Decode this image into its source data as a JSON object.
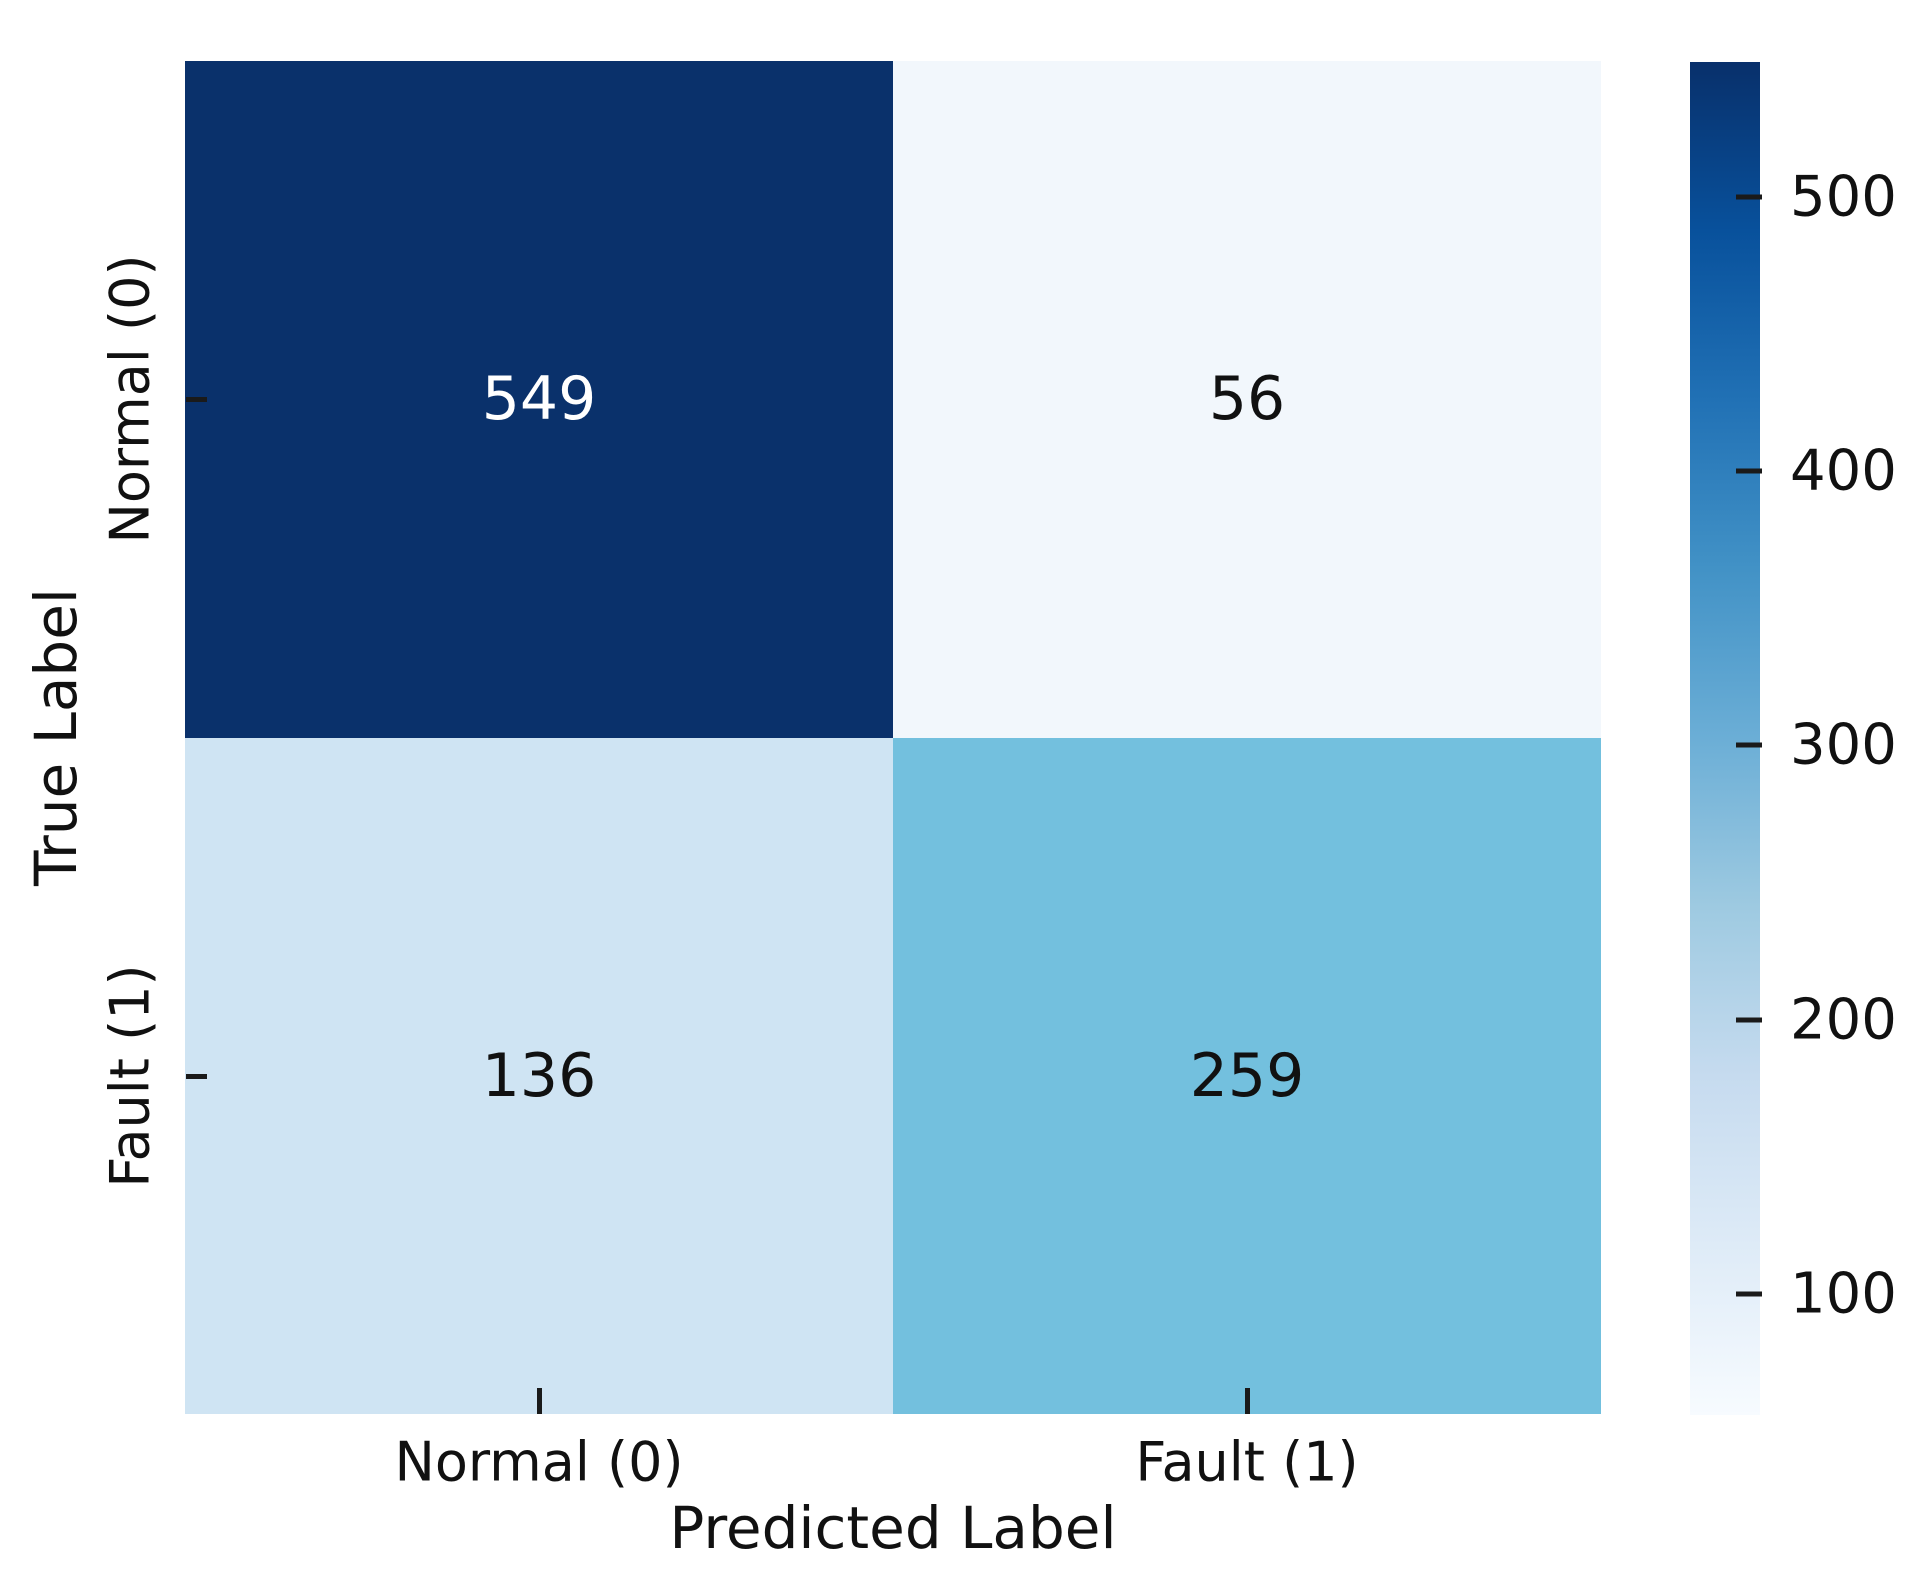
{
  "chart_data": {
    "type": "heatmap",
    "subtype": "confusion-matrix",
    "title": "",
    "xlabel": "Predicted Label",
    "ylabel": "True Label",
    "x_categories": [
      "Normal (0)",
      "Fault (1)"
    ],
    "y_categories": [
      "Normal (0)",
      "Fault (1)"
    ],
    "matrix": [
      [
        549,
        56
      ],
      [
        136,
        259
      ]
    ],
    "cell_colors": [
      [
        "#0a316b",
        "#f2f7fc"
      ],
      [
        "#cfe4f3",
        "#73c0de"
      ]
    ],
    "cell_text_colors": [
      [
        "#ffffff",
        "#111111"
      ],
      [
        "#111111",
        "#111111"
      ]
    ],
    "colormap": "Blues",
    "grid": false,
    "colorbar": {
      "position": "right",
      "vmin": 56,
      "vmax": 549,
      "tick_labels": [
        "500",
        "400",
        "300",
        "200",
        "100"
      ],
      "tick_values": [
        500,
        400,
        300,
        200,
        100
      ],
      "gradient_stops_top_to_bottom": [
        "#08306b",
        "#08519c",
        "#2171b5",
        "#4292c6",
        "#6baed6",
        "#9ecae1",
        "#c6dbef",
        "#deebf7",
        "#f7fbff"
      ]
    }
  }
}
